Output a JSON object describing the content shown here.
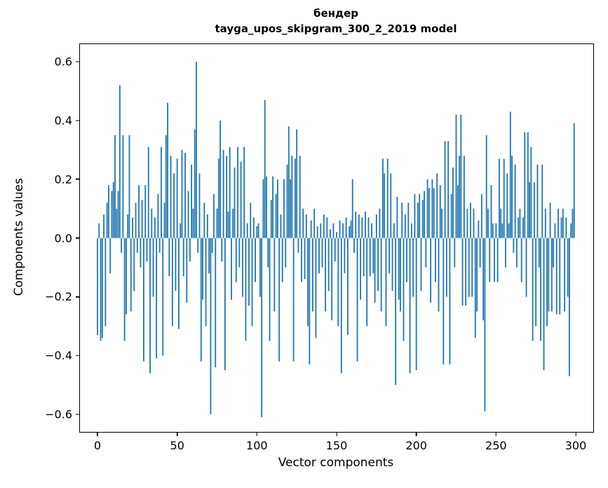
{
  "figure": {
    "title_line1": "бендер",
    "title_line2": "tayga_upos_skipgram_300_2_2019 model",
    "xlabel": "Vector components",
    "ylabel": "Components values",
    "background_color": "#ffffff",
    "spine_color": "#000000"
  },
  "chart_data": {
    "type": "bar",
    "title": "бендер\ntayga_upos_skipgram_300_2_2019 model",
    "xlabel": "Vector components",
    "ylabel": "Components values",
    "bar_color": "#1f77b4",
    "grid": false,
    "legend": "none",
    "xlim": [
      -11,
      311
    ],
    "ylim": [
      -0.66,
      0.66
    ],
    "x_ticks": [
      0,
      50,
      100,
      150,
      200,
      250,
      300
    ],
    "x_tick_labels": [
      "0",
      "50",
      "100",
      "150",
      "200",
      "250",
      "300"
    ],
    "y_ticks": [
      -0.6,
      -0.4,
      -0.2,
      0.0,
      0.2,
      0.4,
      0.6
    ],
    "y_tick_labels": [
      "−0.6",
      "−0.4",
      "−0.2",
      "0.0",
      "0.2",
      "0.4",
      "0.6"
    ],
    "x": "index 0..299 (vector component number)",
    "values": [
      -0.33,
      0.05,
      -0.35,
      -0.34,
      0.08,
      -0.3,
      0.12,
      0.18,
      -0.12,
      0.16,
      0.19,
      0.35,
      0.1,
      0.16,
      0.52,
      -0.05,
      0.35,
      -0.35,
      -0.26,
      0.08,
      0.35,
      -0.25,
      0.07,
      -0.18,
      0.12,
      -0.05,
      0.18,
      -0.1,
      0.13,
      -0.42,
      0.18,
      -0.08,
      0.31,
      -0.46,
      0.1,
      -0.2,
      0.07,
      -0.41,
      0.15,
      -0.05,
      0.31,
      -0.4,
      0.12,
      0.35,
      0.46,
      -0.13,
      0.28,
      -0.3,
      0.22,
      -0.18,
      0.27,
      -0.31,
      0.05,
      0.3,
      -0.13,
      0.29,
      -0.22,
      0.16,
      -0.08,
      0.25,
      0.1,
      0.37,
      0.6,
      -0.05,
      0.22,
      -0.42,
      -0.21,
      0.12,
      -0.3,
      0.08,
      -0.12,
      -0.6,
      -0.05,
      0.15,
      -0.44,
      0.1,
      0.27,
      0.4,
      -0.08,
      0.3,
      -0.45,
      0.28,
      0.09,
      0.31,
      -0.21,
      0.1,
      0.24,
      -0.15,
      0.31,
      -0.1,
      0.26,
      -0.2,
      0.31,
      -0.35,
      0.05,
      -0.23,
      0.12,
      -0.3,
      0.07,
      -0.15,
      0.04,
      0.05,
      -0.2,
      -0.61,
      0.2,
      0.47,
      0.21,
      -0.1,
      -0.35,
      0.13,
      0.21,
      -0.25,
      0.15,
      0.2,
      -0.42,
      0.08,
      -0.15,
      0.2,
      -0.1,
      0.25,
      0.38,
      0.2,
      0.28,
      -0.42,
      0.27,
      0.37,
      -0.05,
      0.28,
      -0.15,
      0.1,
      -0.14,
      0.08,
      -0.3,
      -0.43,
      0.06,
      -0.25,
      0.1,
      -0.34,
      0.04,
      -0.12,
      0.05,
      -0.1,
      0.08,
      -0.25,
      0.07,
      -0.18,
      0.03,
      -0.28,
      0.05,
      -0.08,
      0.02,
      -0.3,
      0.06,
      -0.46,
      0.05,
      -0.12,
      0.07,
      -0.33,
      0.04,
      0.06,
      0.2,
      -0.05,
      0.09,
      -0.42,
      0.08,
      -0.21,
      0.07,
      -0.13,
      0.09,
      -0.3,
      0.07,
      -0.13,
      0.05,
      -0.12,
      -0.22,
      0.08,
      -0.18,
      0.1,
      -0.25,
      0.27,
      0.22,
      -0.3,
      0.27,
      -0.12,
      0.22,
      -0.18,
      0.05,
      -0.5,
      0.14,
      -0.21,
      -0.25,
      0.12,
      -0.35,
      0.08,
      -0.15,
      0.12,
      -0.46,
      0.05,
      -0.2,
      0.15,
      -0.45,
      0.12,
      0.15,
      -0.18,
      0.13,
      0.16,
      -0.1,
      0.2,
      0.17,
      -0.22,
      0.2,
      0.17,
      -0.15,
      0.22,
      -0.25,
      0.18,
      0.1,
      -0.43,
      0.33,
      -0.2,
      0.33,
      -0.43,
      0.15,
      0.24,
      -0.1,
      0.42,
      0.18,
      0.28,
      0.42,
      -0.23,
      0.28,
      -0.23,
      0.1,
      -0.2,
      0.12,
      -0.2,
      0.1,
      -0.34,
      -0.25,
      0.06,
      -0.1,
      0.15,
      -0.28,
      -0.59,
      0.35,
      0.1,
      -0.15,
      0.18,
      0.05,
      -0.15,
      0.05,
      -0.15,
      0.27,
      0.1,
      0.05,
      0.27,
      -0.1,
      0.22,
      0.05,
      0.43,
      0.28,
      -0.05,
      0.25,
      -0.1,
      0.07,
      0.1,
      -0.15,
      0.07,
      0.36,
      -0.2,
      0.36,
      0.19,
      0.31,
      -0.35,
      0.19,
      -0.3,
      0.25,
      -0.1,
      -0.35,
      0.25,
      -0.45,
      0.1,
      -0.3,
      -0.25,
      0.12,
      -0.25,
      -0.1,
      0.05,
      -0.26,
      0.1,
      -0.26,
      0.07,
      0.1,
      -0.25,
      0.07,
      -0.2,
      -0.47,
      0.05,
      0.1,
      0.39
    ]
  }
}
